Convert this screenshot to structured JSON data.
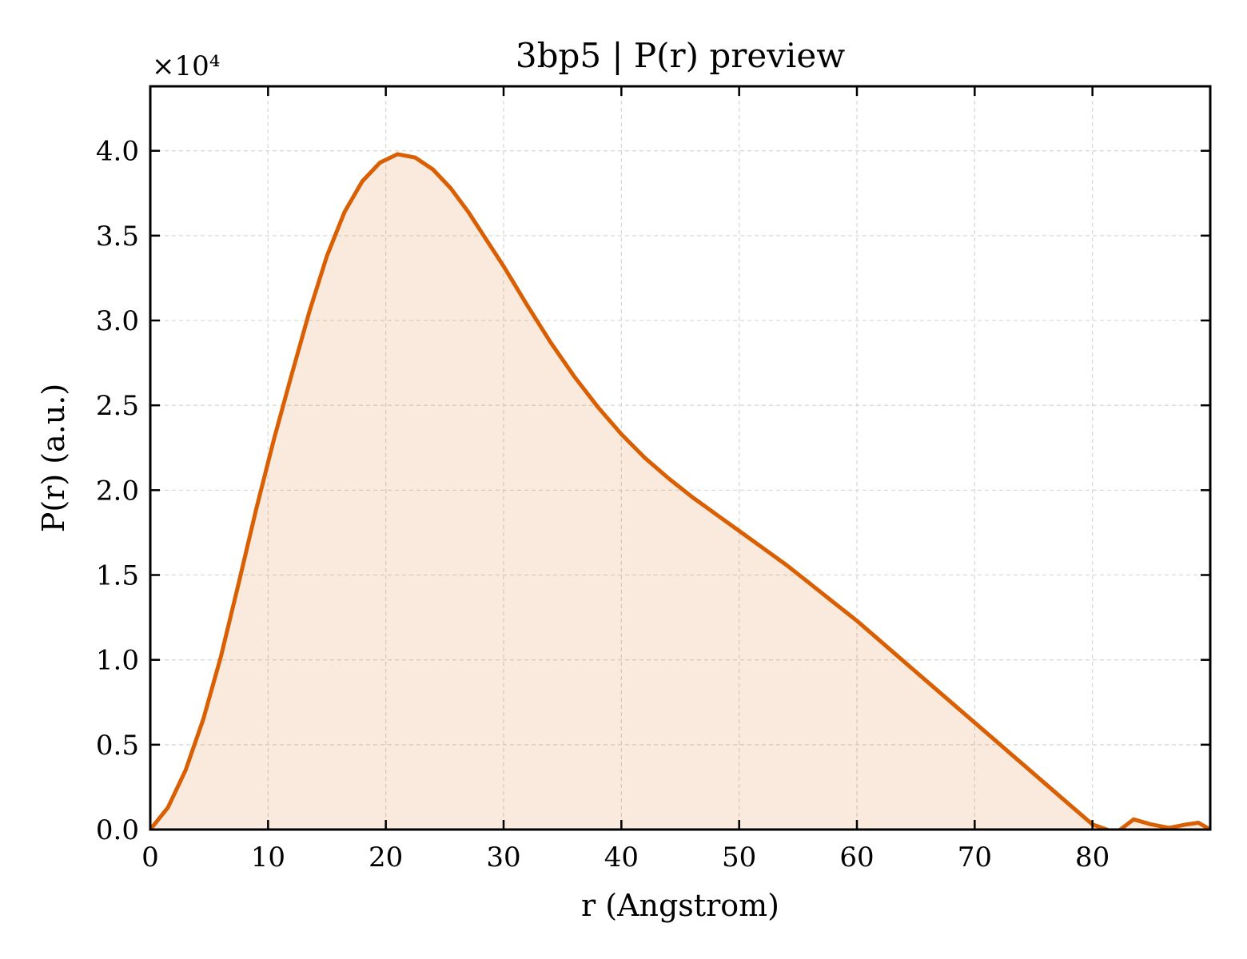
{
  "chart_data": {
    "type": "area",
    "title": "3bp5 | P(r) preview",
    "xlabel": "r (Angstrom)",
    "ylabel": "P(r) (a.u.)",
    "y_offset_label": "×10⁴",
    "y_scale": 10000,
    "xlim": [
      0,
      90
    ],
    "ylim": [
      0,
      43800
    ],
    "x_ticks": [
      0,
      10,
      20,
      30,
      40,
      50,
      60,
      70,
      80
    ],
    "y_ticks": [
      0,
      5000,
      10000,
      15000,
      20000,
      25000,
      30000,
      35000,
      40000
    ],
    "y_tick_labels": [
      "0.0",
      "0.5",
      "1.0",
      "1.5",
      "2.0",
      "2.5",
      "3.0",
      "3.5",
      "4.0"
    ],
    "grid": true,
    "colors": {
      "line": "#d95f02",
      "fill": "#d95f02",
      "fill_opacity": 0.13,
      "grid": "#d9d9d9"
    },
    "series": [
      {
        "x": [
          0,
          1.5,
          3.0,
          4.5,
          6.0,
          7.5,
          9.0,
          10.5,
          12.0,
          13.5,
          15.0,
          16.5,
          18.0,
          19.5,
          21.0,
          22.5,
          24.0,
          25.5,
          27.0,
          28.5,
          30.0,
          32.0,
          34.0,
          36.0,
          38.0,
          40.0,
          42.0,
          44.0,
          46.0,
          48.0,
          50.0,
          52.0,
          54.0,
          56.0,
          58.0,
          60.0,
          62.0,
          64.0,
          66.0,
          68.0,
          70.0,
          72.0,
          74.0,
          76.0,
          78.0,
          80.0,
          82.0,
          83.5,
          85.0,
          86.5,
          88.0,
          89.0,
          90.0
        ],
        "y": [
          0,
          1300,
          3500,
          6500,
          10200,
          14500,
          18900,
          23000,
          26800,
          30500,
          33800,
          36400,
          38200,
          39300,
          39800,
          39600,
          38900,
          37800,
          36400,
          34800,
          33200,
          30900,
          28700,
          26700,
          24900,
          23300,
          21900,
          20700,
          19600,
          18600,
          17600,
          16600,
          15600,
          14500,
          13400,
          12300,
          11100,
          9900,
          8700,
          7500,
          6300,
          5100,
          3900,
          2700,
          1500,
          300,
          -200,
          600,
          300,
          100,
          300,
          400,
          0
        ]
      }
    ]
  }
}
